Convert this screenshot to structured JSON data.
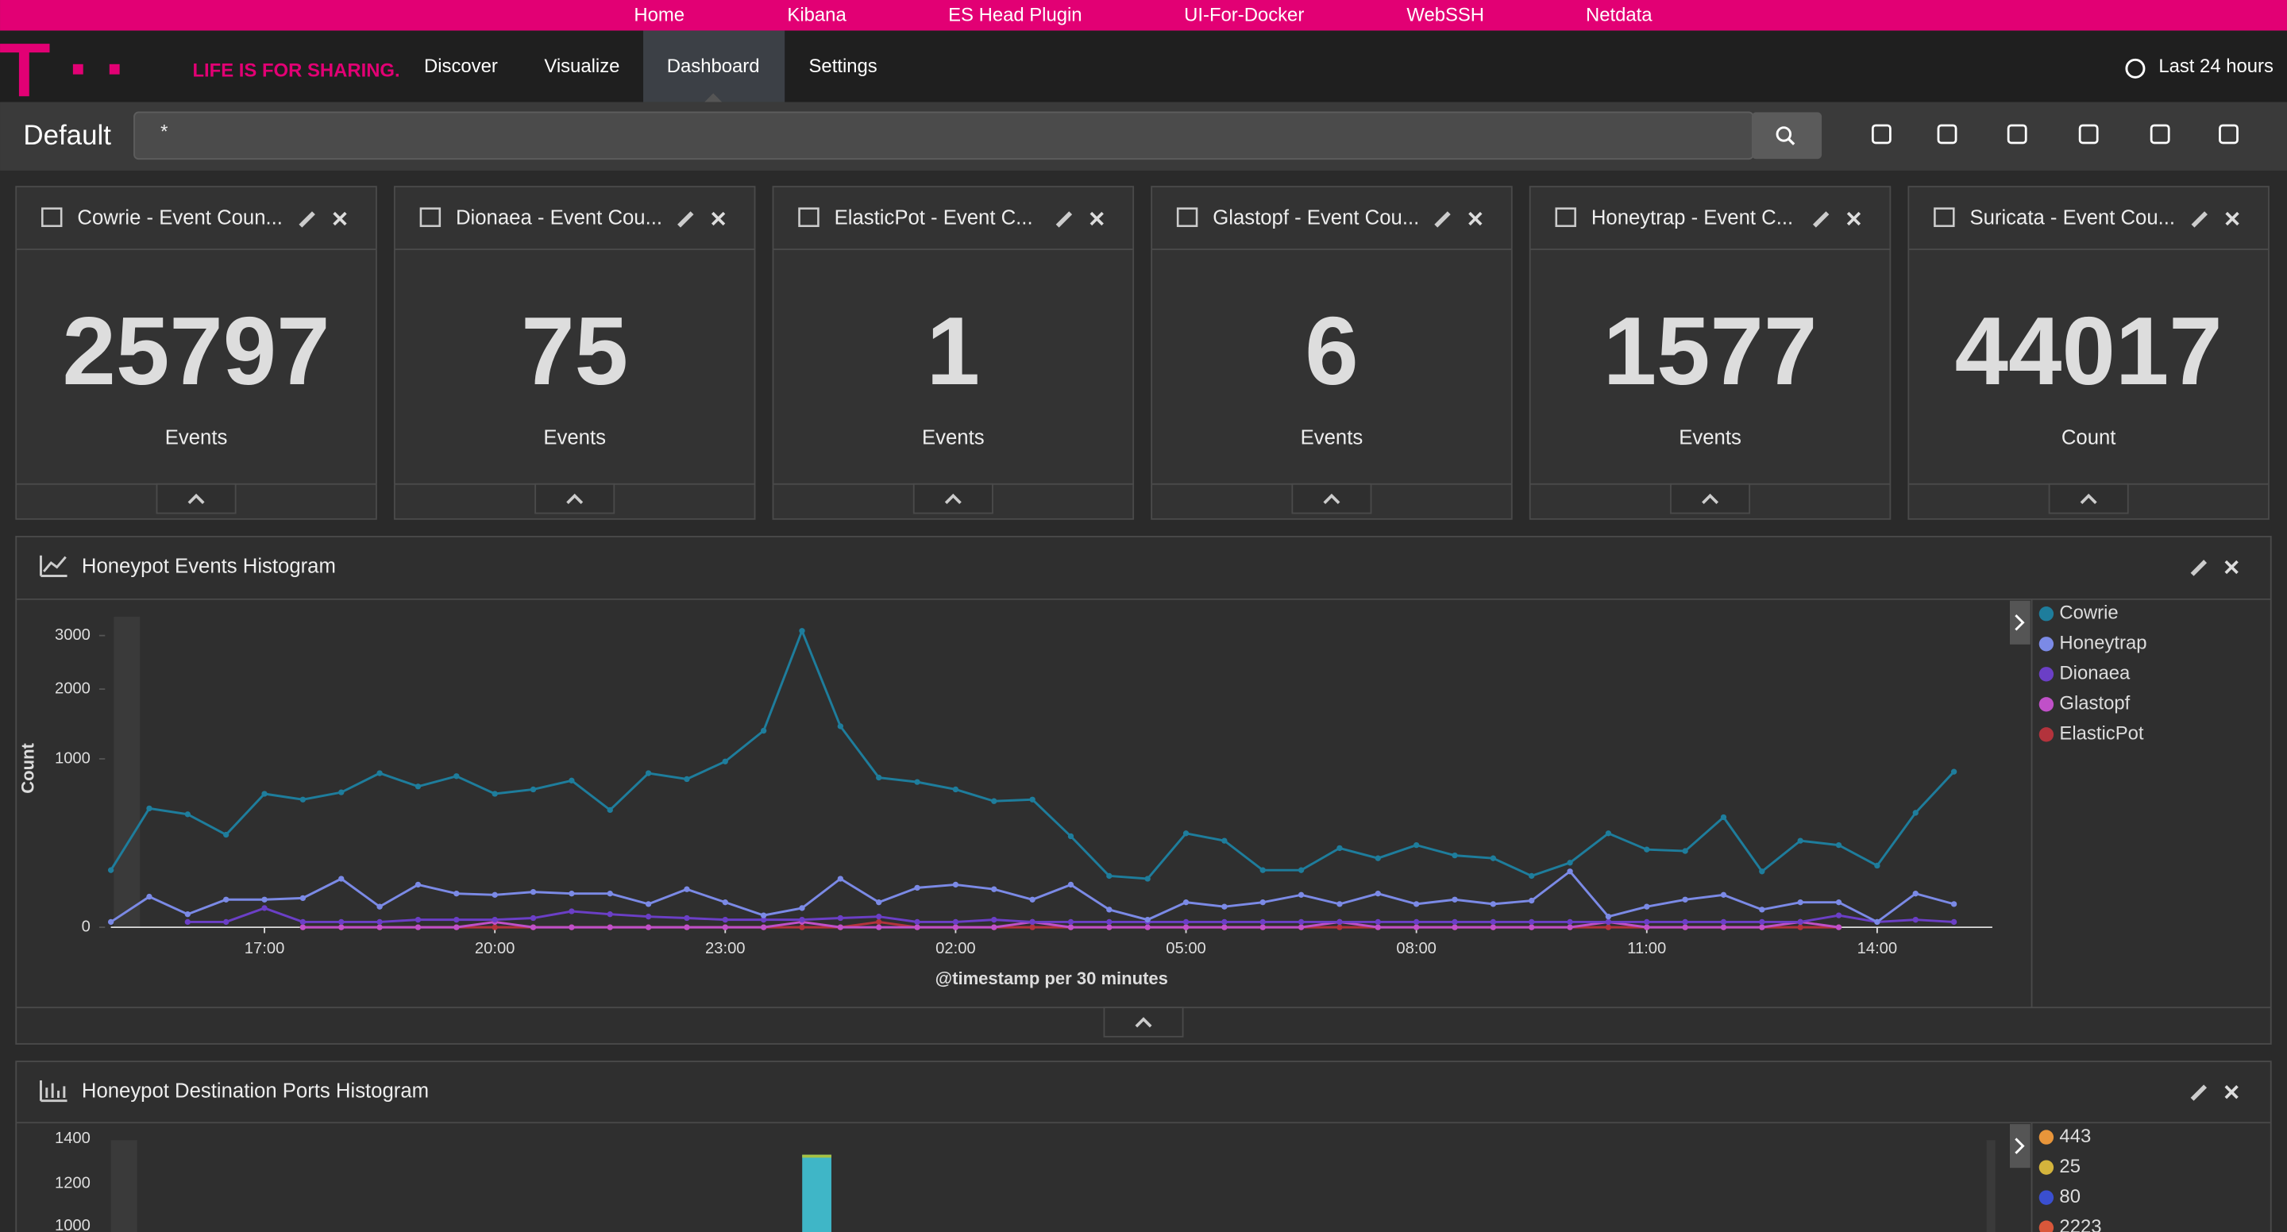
{
  "nav": {
    "top_links": [
      "Home",
      "Kibana",
      "ES Head Plugin",
      "UI-For-Docker",
      "WebSSH",
      "Netdata"
    ],
    "tagline": "LIFE IS FOR SHARING.",
    "tabs": [
      "Discover",
      "Visualize",
      "Dashboard",
      "Settings"
    ],
    "time_range": "Last 24 hours"
  },
  "toolbar": {
    "title": "Default",
    "query": "*"
  },
  "metrics": [
    {
      "title": "Cowrie - Event Coun...",
      "value": 25797,
      "label": "Events"
    },
    {
      "title": "Dionaea - Event Cou...",
      "value": 75,
      "label": "Events"
    },
    {
      "title": "ElasticPot - Event C...",
      "value": 1,
      "label": "Events"
    },
    {
      "title": "Glastopf - Event Cou...",
      "value": 6,
      "label": "Events"
    },
    {
      "title": "Honeytrap - Event C...",
      "value": 1577,
      "label": "Events"
    },
    {
      "title": "Suricata - Event Cou...",
      "value": 44017,
      "label": "Count"
    }
  ],
  "chart_data": {
    "type": "line",
    "title": "Honeypot Events Histogram",
    "x_label": "@timestamp per 30 minutes",
    "y_label": "Count",
    "y_scale": "sqrt",
    "x": [
      15,
      15.5,
      16,
      16.5,
      17,
      17.5,
      18,
      18.5,
      19,
      19.5,
      20,
      20.5,
      21,
      21.5,
      22,
      22.5,
      23,
      23.5,
      24,
      24.5,
      25,
      25.5,
      26,
      26.5,
      27,
      27.5,
      28,
      28.5,
      29,
      29.5,
      30,
      30.5,
      31,
      31.5,
      32,
      32.5,
      33,
      33.5,
      34,
      34.5,
      35,
      35.5,
      36,
      36.5,
      37,
      37.5,
      38,
      38.5,
      39
    ],
    "xlim": [
      15,
      39.5
    ],
    "xticks": [
      {
        "value": 17,
        "label": "17:00"
      },
      {
        "value": 20,
        "label": "20:00"
      },
      {
        "value": 23,
        "label": "23:00"
      },
      {
        "value": 26,
        "label": "02:00"
      },
      {
        "value": 29,
        "label": "05:00"
      },
      {
        "value": 32,
        "label": "08:00"
      },
      {
        "value": 35,
        "label": "11:00"
      },
      {
        "value": 38,
        "label": "14:00"
      }
    ],
    "ylim": [
      0,
      3400
    ],
    "yticks": [
      0,
      1000,
      2000,
      3000
    ],
    "legend": "right",
    "series": [
      {
        "name": "Cowrie",
        "color": "#1e7d9c",
        "values": [
          115,
          498,
          450,
          302,
          628,
          575,
          642,
          837,
          699,
          805,
          628,
          670,
          759,
          485,
          837,
          774,
          969,
          1362,
          3097,
          1424,
          790,
          744,
          670,
          561,
          575,
          292,
          93,
          83,
          311,
          264,
          115,
          115,
          221,
          168,
          238,
          182,
          168,
          93,
          147,
          311,
          213,
          205,
          427,
          110,
          264,
          238,
          134,
          462,
          853
        ]
      },
      {
        "name": "Honeytrap",
        "color": "#7b8ae6",
        "values": [
          1,
          33,
          6,
          27,
          27,
          30,
          83,
          15,
          64,
          40,
          37,
          44,
          40,
          40,
          19,
          51,
          22,
          5,
          13,
          83,
          22,
          55,
          64,
          51,
          27,
          64,
          11,
          2,
          22,
          15,
          22,
          37,
          19,
          40,
          19,
          27,
          19,
          25,
          110,
          4,
          15,
          27,
          37,
          11,
          22,
          22,
          1,
          40,
          19
        ]
      },
      {
        "name": "Dionaea",
        "color": "#6b3fc6",
        "values": [
          null,
          null,
          1,
          1,
          13,
          1,
          1,
          1,
          2,
          2,
          2,
          3,
          9,
          6,
          4,
          3,
          2,
          2,
          2,
          3,
          4,
          1,
          1,
          2,
          1,
          1,
          1,
          1,
          1,
          1,
          1,
          1,
          1,
          1,
          1,
          1,
          1,
          1,
          1,
          1,
          1,
          1,
          1,
          1,
          1,
          5,
          1,
          2,
          1
        ]
      },
      {
        "name": "Glastopf",
        "color": "#c050c8",
        "values": [
          null,
          null,
          null,
          null,
          null,
          0,
          0,
          0,
          0,
          0,
          1,
          0,
          0,
          0,
          0,
          0,
          0,
          0,
          1,
          0,
          0,
          0,
          0,
          0,
          1,
          0,
          0,
          0,
          0,
          0,
          0,
          0,
          1,
          0,
          0,
          0,
          0,
          0,
          0,
          1,
          0,
          0,
          0,
          0,
          1,
          0,
          null,
          null,
          null
        ]
      },
      {
        "name": "ElasticPot",
        "color": "#b3333c",
        "values": [
          null,
          null,
          null,
          null,
          null,
          0,
          0,
          0,
          0,
          0,
          0,
          0,
          0,
          0,
          0,
          0,
          0,
          0,
          0,
          0,
          1,
          0,
          0,
          0,
          0,
          0,
          0,
          0,
          0,
          0,
          0,
          0,
          0,
          0,
          0,
          0,
          0,
          0,
          0,
          0,
          0,
          0,
          0,
          0,
          0,
          0,
          null,
          null,
          null
        ]
      }
    ]
  },
  "ports_panel": {
    "title": "Honeypot Destination Ports Histogram",
    "yticks": [
      1400,
      1200,
      1000
    ],
    "legend": [
      {
        "name": "443",
        "color": "#e8953a"
      },
      {
        "name": "25",
        "color": "#d4b43c"
      },
      {
        "name": "80",
        "color": "#3a4fd0"
      },
      {
        "name": "2223",
        "color": "#d9573a"
      }
    ]
  }
}
